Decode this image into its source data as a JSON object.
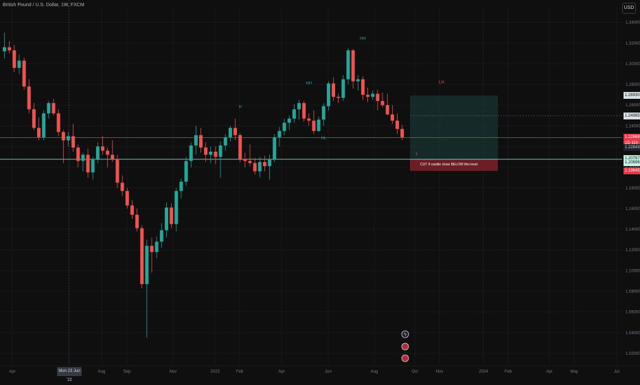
{
  "header": {
    "symbol_title": "British Pound / U.S. Dollar, 1W, FXCM",
    "currency": "USD"
  },
  "colors": {
    "up": "#26a69a",
    "down": "#ef5350",
    "grid": "#1c1f26",
    "zone_fill": "#1a3a3a",
    "zone_border": "#26a69a",
    "red_line": "#e13a4a",
    "green_line": "#8fd3c6",
    "stop_fill": "#6b1f25"
  },
  "chart_data": {
    "type": "candlestick",
    "title": "British Pound / U.S. Dollar, 1W, FXCM",
    "y_axis": {
      "ticks": [
        "1.34000",
        "1.32000",
        "1.30000",
        "1.28000",
        "1.26000",
        "1.24000",
        "1.22000",
        "1.20000",
        "1.18000",
        "1.16000",
        "1.14000",
        "1.12000",
        "1.10000",
        "1.08000",
        "1.06000",
        "1.04000",
        "1.02000"
      ],
      "ylim": [
        1.01,
        1.355
      ]
    },
    "x_axis": {
      "labels": [
        "Apr",
        "May",
        "Aug",
        "Sep",
        "Nov",
        "2023",
        "Feb",
        "Apr",
        "Jun",
        "Aug",
        "Oct",
        "Nov",
        "2024",
        "Feb",
        "Apr",
        "May",
        "Jul"
      ],
      "crosshair_label": "Mon 23 Jun '22"
    },
    "candles": [
      {
        "o": 1.312,
        "h": 1.33,
        "l": 1.305,
        "c": 1.316
      },
      {
        "o": 1.316,
        "h": 1.322,
        "l": 1.31,
        "c": 1.313
      },
      {
        "o": 1.313,
        "h": 1.318,
        "l": 1.292,
        "c": 1.296
      },
      {
        "o": 1.296,
        "h": 1.309,
        "l": 1.29,
        "c": 1.303
      },
      {
        "o": 1.303,
        "h": 1.306,
        "l": 1.275,
        "c": 1.278
      },
      {
        "o": 1.278,
        "h": 1.285,
        "l": 1.252,
        "c": 1.256
      },
      {
        "o": 1.256,
        "h": 1.262,
        "l": 1.236,
        "c": 1.238
      },
      {
        "o": 1.238,
        "h": 1.248,
        "l": 1.226,
        "c": 1.229
      },
      {
        "o": 1.229,
        "h": 1.255,
        "l": 1.226,
        "c": 1.252
      },
      {
        "o": 1.252,
        "h": 1.264,
        "l": 1.247,
        "c": 1.262
      },
      {
        "o": 1.262,
        "h": 1.266,
        "l": 1.25,
        "c": 1.252
      },
      {
        "o": 1.252,
        "h": 1.256,
        "l": 1.23,
        "c": 1.234
      },
      {
        "o": 1.234,
        "h": 1.236,
        "l": 1.204,
        "c": 1.226
      },
      {
        "o": 1.226,
        "h": 1.234,
        "l": 1.22,
        "c": 1.23
      },
      {
        "o": 1.23,
        "h": 1.242,
        "l": 1.215,
        "c": 1.219
      },
      {
        "o": 1.219,
        "h": 1.222,
        "l": 1.2,
        "c": 1.206
      },
      {
        "o": 1.206,
        "h": 1.214,
        "l": 1.196,
        "c": 1.212
      },
      {
        "o": 1.212,
        "h": 1.218,
        "l": 1.19,
        "c": 1.195
      },
      {
        "o": 1.195,
        "h": 1.21,
        "l": 1.188,
        "c": 1.208
      },
      {
        "o": 1.208,
        "h": 1.224,
        "l": 1.204,
        "c": 1.22
      },
      {
        "o": 1.22,
        "h": 1.23,
        "l": 1.212,
        "c": 1.216
      },
      {
        "o": 1.216,
        "h": 1.219,
        "l": 1.2,
        "c": 1.212
      },
      {
        "o": 1.212,
        "h": 1.226,
        "l": 1.205,
        "c": 1.208
      },
      {
        "o": 1.208,
        "h": 1.212,
        "l": 1.18,
        "c": 1.185
      },
      {
        "o": 1.185,
        "h": 1.192,
        "l": 1.172,
        "c": 1.177
      },
      {
        "o": 1.177,
        "h": 1.18,
        "l": 1.16,
        "c": 1.163
      },
      {
        "o": 1.163,
        "h": 1.168,
        "l": 1.15,
        "c": 1.154
      },
      {
        "o": 1.154,
        "h": 1.16,
        "l": 1.138,
        "c": 1.141
      },
      {
        "o": 1.141,
        "h": 1.144,
        "l": 1.083,
        "c": 1.087
      },
      {
        "o": 1.087,
        "h": 1.13,
        "l": 1.035,
        "c": 1.124
      },
      {
        "o": 1.124,
        "h": 1.132,
        "l": 1.098,
        "c": 1.118
      },
      {
        "o": 1.118,
        "h": 1.133,
        "l": 1.112,
        "c": 1.128
      },
      {
        "o": 1.128,
        "h": 1.146,
        "l": 1.122,
        "c": 1.139
      },
      {
        "o": 1.139,
        "h": 1.166,
        "l": 1.132,
        "c": 1.161
      },
      {
        "o": 1.161,
        "h": 1.165,
        "l": 1.141,
        "c": 1.145
      },
      {
        "o": 1.145,
        "h": 1.18,
        "l": 1.138,
        "c": 1.177
      },
      {
        "o": 1.177,
        "h": 1.189,
        "l": 1.17,
        "c": 1.186
      },
      {
        "o": 1.186,
        "h": 1.21,
        "l": 1.182,
        "c": 1.206
      },
      {
        "o": 1.206,
        "h": 1.224,
        "l": 1.2,
        "c": 1.221
      },
      {
        "o": 1.221,
        "h": 1.24,
        "l": 1.212,
        "c": 1.231
      },
      {
        "o": 1.231,
        "h": 1.238,
        "l": 1.214,
        "c": 1.219
      },
      {
        "o": 1.219,
        "h": 1.224,
        "l": 1.205,
        "c": 1.212
      },
      {
        "o": 1.212,
        "h": 1.22,
        "l": 1.204,
        "c": 1.215
      },
      {
        "o": 1.215,
        "h": 1.22,
        "l": 1.203,
        "c": 1.21
      },
      {
        "o": 1.21,
        "h": 1.225,
        "l": 1.19,
        "c": 1.221
      },
      {
        "o": 1.221,
        "h": 1.232,
        "l": 1.216,
        "c": 1.229
      },
      {
        "o": 1.229,
        "h": 1.24,
        "l": 1.225,
        "c": 1.238
      },
      {
        "o": 1.238,
        "h": 1.247,
        "l": 1.226,
        "c": 1.231
      },
      {
        "o": 1.231,
        "h": 1.233,
        "l": 1.205,
        "c": 1.208
      },
      {
        "o": 1.208,
        "h": 1.214,
        "l": 1.2,
        "c": 1.206
      },
      {
        "o": 1.206,
        "h": 1.222,
        "l": 1.201,
        "c": 1.204
      },
      {
        "o": 1.204,
        "h": 1.209,
        "l": 1.193,
        "c": 1.196
      },
      {
        "o": 1.196,
        "h": 1.21,
        "l": 1.19,
        "c": 1.205
      },
      {
        "o": 1.205,
        "h": 1.211,
        "l": 1.196,
        "c": 1.201
      },
      {
        "o": 1.201,
        "h": 1.212,
        "l": 1.188,
        "c": 1.208
      },
      {
        "o": 1.208,
        "h": 1.232,
        "l": 1.205,
        "c": 1.229
      },
      {
        "o": 1.229,
        "h": 1.239,
        "l": 1.22,
        "c": 1.235
      },
      {
        "o": 1.235,
        "h": 1.247,
        "l": 1.231,
        "c": 1.243
      },
      {
        "o": 1.243,
        "h": 1.25,
        "l": 1.236,
        "c": 1.247
      },
      {
        "o": 1.247,
        "h": 1.261,
        "l": 1.243,
        "c": 1.256
      },
      {
        "o": 1.256,
        "h": 1.265,
        "l": 1.246,
        "c": 1.262
      },
      {
        "o": 1.262,
        "h": 1.264,
        "l": 1.244,
        "c": 1.247
      },
      {
        "o": 1.247,
        "h": 1.252,
        "l": 1.24,
        "c": 1.245
      },
      {
        "o": 1.245,
        "h": 1.255,
        "l": 1.232,
        "c": 1.235
      },
      {
        "o": 1.235,
        "h": 1.249,
        "l": 1.234,
        "c": 1.246
      },
      {
        "o": 1.246,
        "h": 1.262,
        "l": 1.24,
        "c": 1.259
      },
      {
        "o": 1.259,
        "h": 1.283,
        "l": 1.255,
        "c": 1.281
      },
      {
        "o": 1.281,
        "h": 1.287,
        "l": 1.264,
        "c": 1.268
      },
      {
        "o": 1.268,
        "h": 1.271,
        "l": 1.262,
        "c": 1.267
      },
      {
        "o": 1.267,
        "h": 1.289,
        "l": 1.264,
        "c": 1.285
      },
      {
        "o": 1.285,
        "h": 1.315,
        "l": 1.28,
        "c": 1.313
      },
      {
        "o": 1.313,
        "h": 1.314,
        "l": 1.276,
        "c": 1.283
      },
      {
        "o": 1.283,
        "h": 1.289,
        "l": 1.274,
        "c": 1.285
      },
      {
        "o": 1.285,
        "h": 1.288,
        "l": 1.265,
        "c": 1.27
      },
      {
        "o": 1.27,
        "h": 1.277,
        "l": 1.263,
        "c": 1.268
      },
      {
        "o": 1.268,
        "h": 1.274,
        "l": 1.265,
        "c": 1.271
      },
      {
        "o": 1.271,
        "h": 1.275,
        "l": 1.255,
        "c": 1.264
      },
      {
        "o": 1.264,
        "h": 1.272,
        "l": 1.258,
        "c": 1.26
      },
      {
        "o": 1.26,
        "h": 1.271,
        "l": 1.25,
        "c": 1.251
      },
      {
        "o": 1.251,
        "h": 1.26,
        "l": 1.242,
        "c": 1.245
      },
      {
        "o": 1.245,
        "h": 1.252,
        "l": 1.232,
        "c": 1.237
      },
      {
        "o": 1.237,
        "h": 1.241,
        "l": 1.226,
        "c": 1.229
      }
    ],
    "pattern_labels": [
      {
        "text": "H",
        "bar": 48,
        "price": 1.257,
        "color": "#26a69a"
      },
      {
        "text": "HH",
        "bar": 62,
        "price": 1.28,
        "color": "#26a69a"
      },
      {
        "text": "HL",
        "bar": 65,
        "price": 1.227,
        "color": "#26a69a"
      },
      {
        "text": "HH",
        "bar": 73,
        "price": 1.323,
        "color": "#26a69a"
      },
      {
        "text": "LH",
        "bar": 89,
        "price": 1.281,
        "color": "#ef5350"
      },
      {
        "text": "L",
        "bar": 84,
        "price": 1.212,
        "color": "#ef5350"
      }
    ],
    "horizontal_levels": {
      "red_line": 1.22868,
      "green_line": 1.20767,
      "upper_dashed": 1.24965,
      "zone_top": 1.2693,
      "zone_bottom": 1.20767,
      "stop_bottom": 1.19645
    },
    "price_tags": [
      {
        "text": "1.26930",
        "price": 1.2693,
        "style": "light"
      },
      {
        "text": "1.24965",
        "price": 1.24965,
        "style": "light"
      },
      {
        "text": "1.22868",
        "price": 1.22868,
        "style": "red"
      },
      {
        "text": "1D 11h",
        "price": 1.2232,
        "style": "red"
      },
      {
        "text": "1.22843",
        "price": 1.2192,
        "style": "dark"
      },
      {
        "text": "1.20767",
        "price": 1.2085,
        "style": "green"
      },
      {
        "text": "1.20696",
        "price": 1.2041,
        "style": "green"
      },
      {
        "text": "1.19645",
        "price": 1.1966,
        "style": "red"
      }
    ],
    "annotation": "CUT if candle close BELOW this level",
    "grid": true
  }
}
